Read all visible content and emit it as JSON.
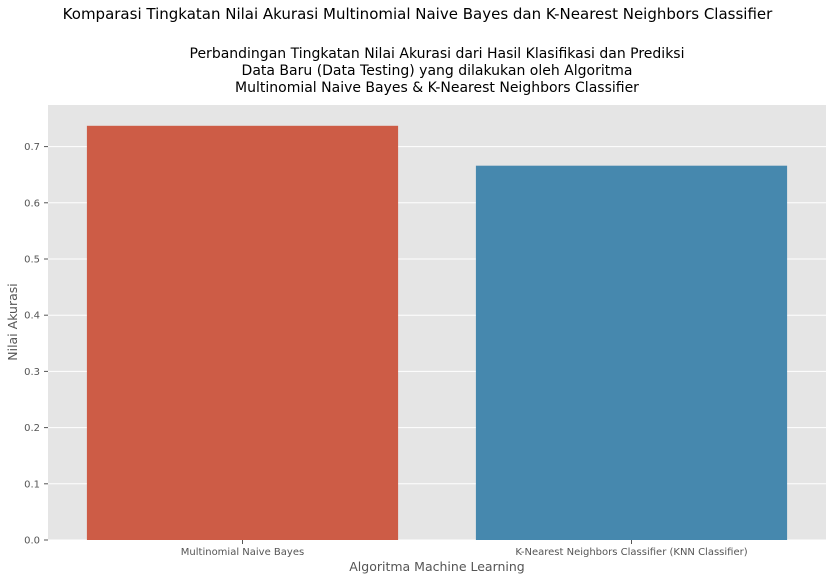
{
  "figure": {
    "suptitle": "Komparasi Tingkatan Nilai Akurasi Multinomial Naive Bayes dan K-Nearest Neighbors Classifier"
  },
  "chart_data": {
    "type": "bar",
    "title": "Perbandingan Tingkatan Nilai Akurasi dari Hasil Klasifikasi dan Prediksi\nData Baru (Data Testing) yang dilakukan oleh Algoritma\nMultinomial Naive Bayes & K-Nearest Neighbors Classifier",
    "xlabel": "Algoritma Machine Learning",
    "ylabel": "Nilai Akurasi",
    "categories": [
      "Multinomial Naive Bayes",
      "K-Nearest Neighbors Classifier (KNN Classifier)"
    ],
    "values": [
      0.737,
      0.666
    ],
    "colors": [
      "#cd5c46",
      "#4688ae"
    ],
    "ylim": [
      0,
      0.774
    ],
    "yticks": [
      0.0,
      0.1,
      0.2,
      0.3,
      0.4,
      0.5,
      0.6,
      0.7
    ],
    "ytick_labels": [
      "0.0",
      "0.1",
      "0.2",
      "0.3",
      "0.4",
      "0.5",
      "0.6",
      "0.7"
    ],
    "grid": true,
    "background": "#e5e5e5",
    "grid_color": "#ffffff",
    "tick_color": "#555555"
  }
}
